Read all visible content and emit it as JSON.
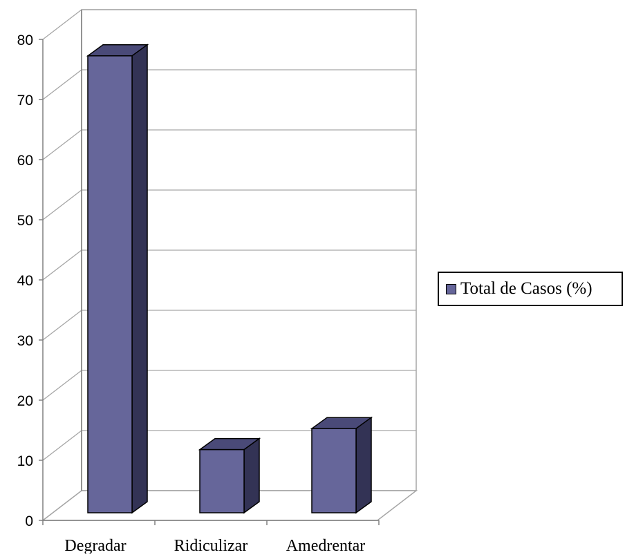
{
  "colors": {
    "bar_front": "#66669a",
    "bar_side": "#333355",
    "bar_top": "#4a4a78",
    "grid": "#a6a6a6",
    "axis": "#808080"
  },
  "legend": {
    "label": "Total de Casos (%)"
  },
  "chart_data": {
    "type": "bar",
    "categories": [
      "Degradar",
      "Ridiculizar",
      "Amedrentar"
    ],
    "series": [
      {
        "name": "Total de Casos (%)",
        "values": [
          76,
          10.5,
          14
        ]
      }
    ],
    "title": "",
    "xlabel": "",
    "ylabel": "",
    "ylim": [
      0,
      80
    ],
    "yticks": [
      0,
      10,
      20,
      30,
      40,
      50,
      60,
      70,
      80
    ],
    "grid": true,
    "legend_position": "right",
    "three_d": true
  }
}
